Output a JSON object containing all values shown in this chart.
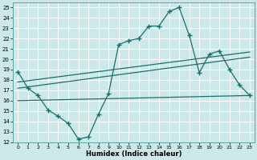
{
  "xlabel": "Humidex (Indice chaleur)",
  "bg_color": "#cce8e8",
  "grid_color": "#b0d8d8",
  "line_color": "#1a6e6e",
  "xlim": [
    -0.5,
    23.5
  ],
  "ylim": [
    12,
    25.5
  ],
  "x_ticks": [
    0,
    1,
    2,
    3,
    4,
    5,
    6,
    7,
    8,
    9,
    10,
    11,
    12,
    13,
    14,
    15,
    16,
    17,
    18,
    19,
    20,
    21,
    22,
    23
  ],
  "y_ticks": [
    12,
    13,
    14,
    15,
    16,
    17,
    18,
    19,
    20,
    21,
    22,
    23,
    24,
    25
  ],
  "line1_x": [
    0,
    1,
    2,
    3,
    4,
    5,
    6,
    7,
    8,
    9,
    10,
    11,
    12,
    13,
    14,
    15,
    16,
    17,
    18,
    19,
    20,
    21,
    22,
    23
  ],
  "line1_y": [
    18.8,
    17.2,
    16.5,
    15.1,
    14.5,
    13.8,
    12.3,
    12.5,
    14.7,
    16.7,
    21.4,
    21.8,
    22.0,
    23.2,
    23.2,
    24.6,
    25.0,
    22.3,
    18.7,
    20.5,
    20.8,
    19.0,
    17.5,
    16.5
  ],
  "line2_x": [
    0,
    23
  ],
  "line2_y": [
    17.2,
    20.2
  ],
  "line3_x": [
    0,
    23
  ],
  "line3_y": [
    17.8,
    20.7
  ],
  "line4_x": [
    0,
    23
  ],
  "line4_y": [
    16.0,
    16.5
  ]
}
